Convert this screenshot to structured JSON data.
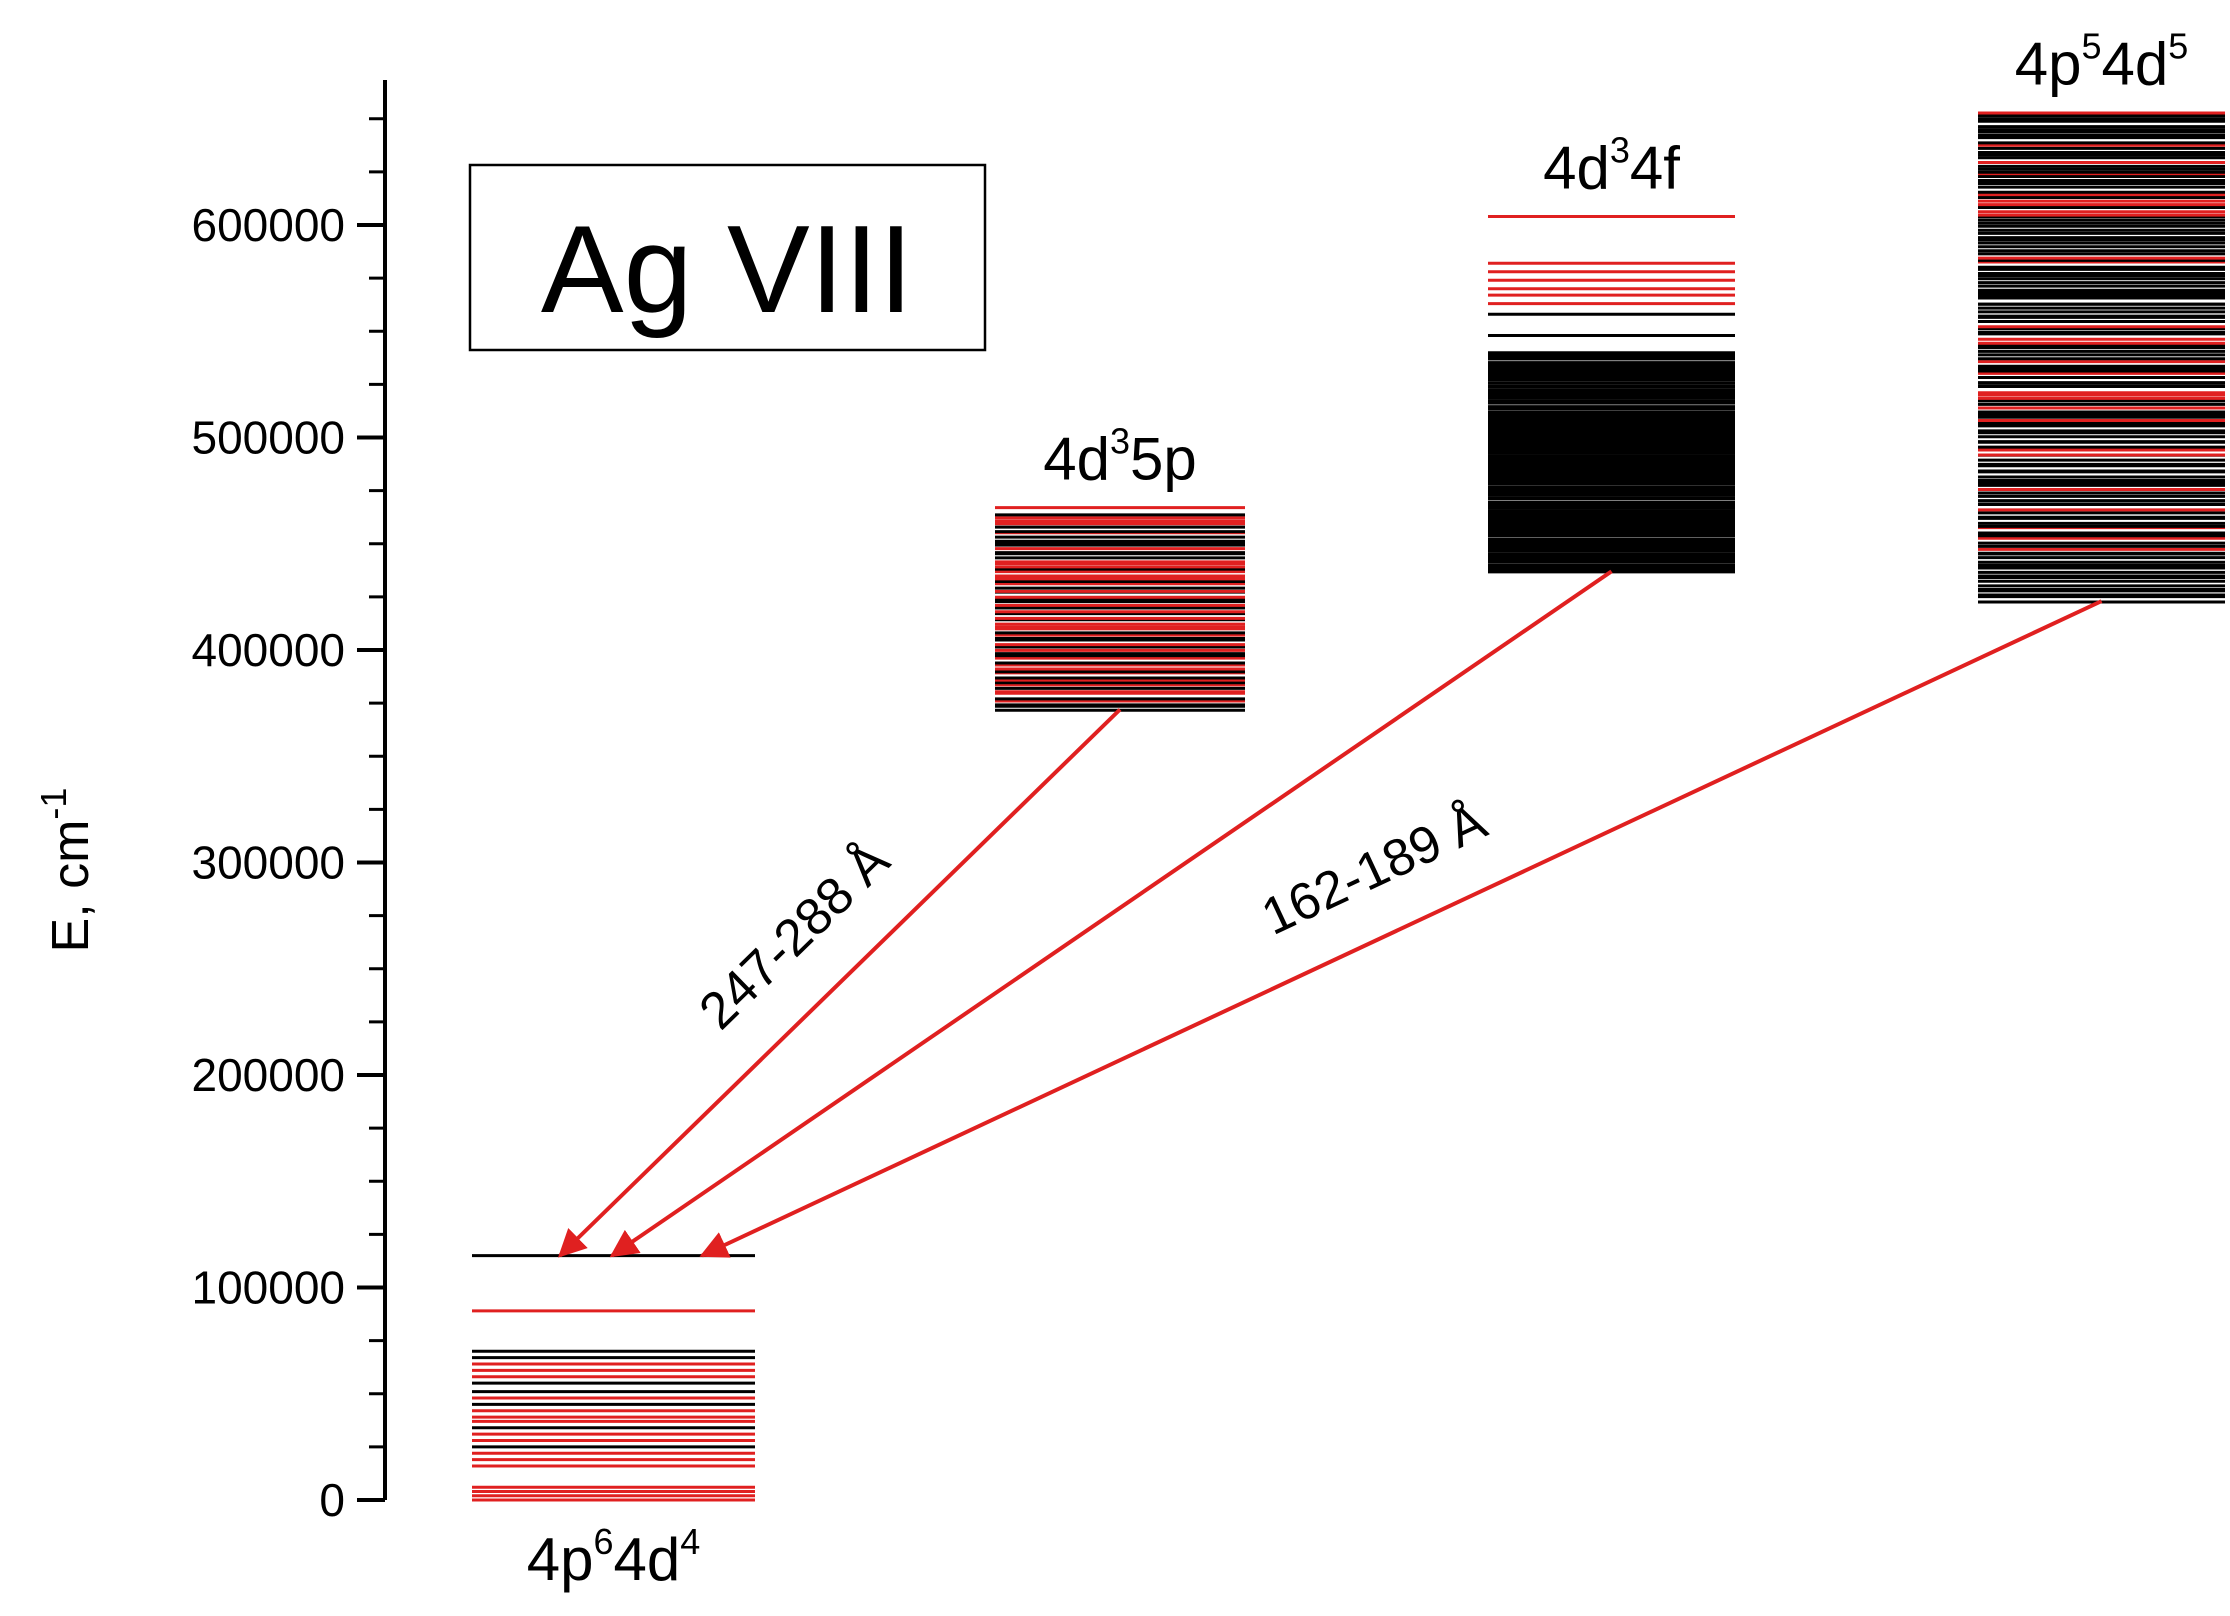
{
  "chart_data": {
    "type": "diagram",
    "title": "Ag VIII",
    "ylabel": "E, cm",
    "ylabel_sup": "-1",
    "ylim": [
      0,
      670000
    ],
    "yticks": [
      0,
      100000,
      200000,
      300000,
      400000,
      500000,
      600000
    ],
    "ytick_labels": [
      "0",
      "100000",
      "200000",
      "300000",
      "400000",
      "500000",
      "600000"
    ],
    "minor_tick_step": 25000,
    "colors": {
      "red": "#e02020",
      "black": "#000000"
    },
    "configurations": [
      {
        "label_parts": [
          {
            "text": "4p",
            "sup": false
          },
          {
            "text": "6",
            "sup": true
          },
          {
            "text": "4d",
            "sup": false
          },
          {
            "text": "4",
            "sup": true
          }
        ],
        "label_position": "below",
        "range": [
          0,
          115000
        ],
        "levels": [
          {
            "e": 115000,
            "color": "black"
          },
          {
            "e": 89000,
            "color": "red"
          },
          {
            "e": 70000,
            "color": "black"
          },
          {
            "e": 67000,
            "color": "black"
          },
          {
            "e": 64000,
            "color": "red"
          },
          {
            "e": 61000,
            "color": "red"
          },
          {
            "e": 58000,
            "color": "red"
          },
          {
            "e": 55000,
            "color": "black"
          },
          {
            "e": 51000,
            "color": "black"
          },
          {
            "e": 48000,
            "color": "red"
          },
          {
            "e": 45000,
            "color": "black"
          },
          {
            "e": 42000,
            "color": "red"
          },
          {
            "e": 39000,
            "color": "red"
          },
          {
            "e": 37000,
            "color": "red"
          },
          {
            "e": 34000,
            "color": "black"
          },
          {
            "e": 31000,
            "color": "red"
          },
          {
            "e": 28000,
            "color": "red"
          },
          {
            "e": 25000,
            "color": "black"
          },
          {
            "e": 22000,
            "color": "red"
          },
          {
            "e": 19000,
            "color": "red"
          },
          {
            "e": 16000,
            "color": "red"
          },
          {
            "e": 6000,
            "color": "red"
          },
          {
            "e": 4000,
            "color": "red"
          },
          {
            "e": 2000,
            "color": "red"
          },
          {
            "e": 0,
            "color": "red"
          }
        ]
      },
      {
        "label_parts": [
          {
            "text": "4d",
            "sup": false
          },
          {
            "text": "3",
            "sup": true
          },
          {
            "text": "5p",
            "sup": false
          }
        ],
        "label_position": "above",
        "range": [
          372000,
          467000
        ],
        "band": {
          "from": 372000,
          "to": 463000,
          "count": 66,
          "red_fraction": 0.55,
          "seed": 7
        },
        "levels": [
          {
            "e": 467000,
            "color": "red"
          }
        ]
      },
      {
        "label_parts": [
          {
            "text": "4d",
            "sup": false
          },
          {
            "text": "3",
            "sup": true
          },
          {
            "text": "4f",
            "sup": false
          }
        ],
        "label_position": "above",
        "range": [
          437000,
          604000
        ],
        "band": {
          "from": 437000,
          "to": 540000,
          "count": 120,
          "red_fraction": 0.0,
          "seed": 11
        },
        "levels": [
          {
            "e": 604000,
            "color": "red"
          },
          {
            "e": 582000,
            "color": "red"
          },
          {
            "e": 578000,
            "color": "red"
          },
          {
            "e": 574000,
            "color": "red"
          },
          {
            "e": 570000,
            "color": "red"
          },
          {
            "e": 567000,
            "color": "red"
          },
          {
            "e": 563000,
            "color": "red"
          },
          {
            "e": 558000,
            "color": "black"
          },
          {
            "e": 548000,
            "color": "black"
          }
        ]
      },
      {
        "label_parts": [
          {
            "text": "4p",
            "sup": false
          },
          {
            "text": "5",
            "sup": true
          },
          {
            "text": "4d",
            "sup": false
          },
          {
            "text": "5",
            "sup": true
          }
        ],
        "label_position": "above",
        "range": [
          423000,
          653000
        ],
        "band": {
          "from": 423000,
          "to": 653000,
          "count": 150,
          "red_fraction": 0.22,
          "seed": 3
        },
        "levels": []
      }
    ],
    "transitions": [
      {
        "from_config": 1,
        "label": "247-288 Å"
      },
      {
        "from_config": 2,
        "label": ""
      },
      {
        "from_config": 3,
        "label": "162-189 Å"
      }
    ]
  }
}
